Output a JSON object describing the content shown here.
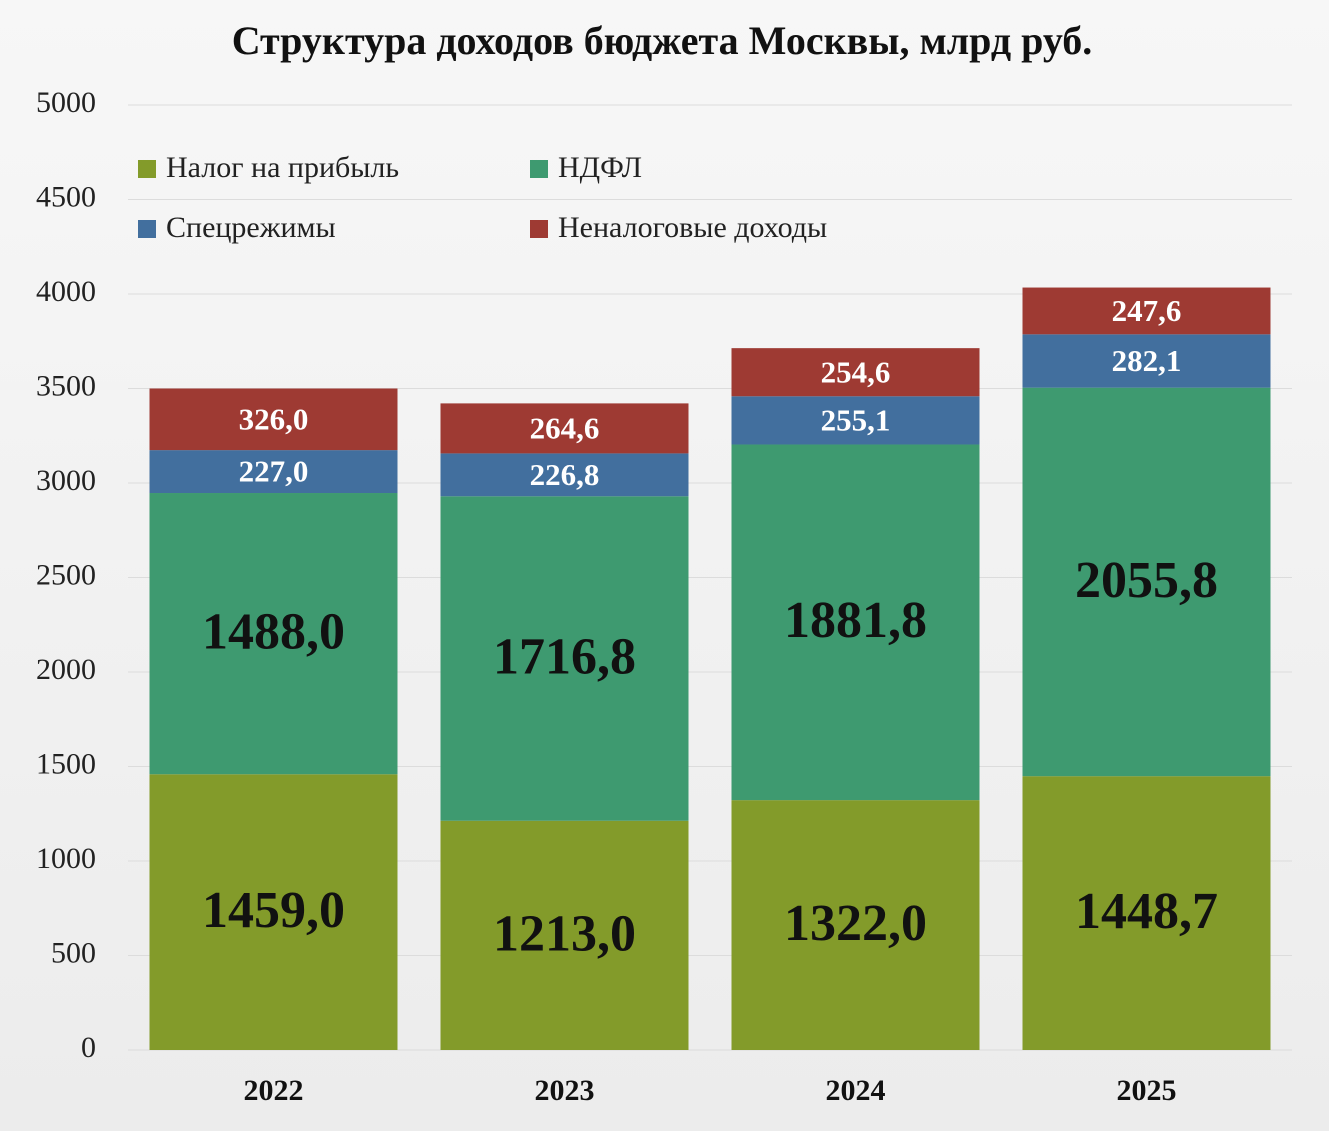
{
  "chart_data": {
    "type": "stacked_bar",
    "title": "Структура доходов бюджета Москвы, млрд руб.",
    "categories": [
      "2022",
      "2023",
      "2024",
      "2025"
    ],
    "series": [
      {
        "name": "Налог на прибыль",
        "color": "#839b2a",
        "values": [
          1459.0,
          1213.0,
          1322.0,
          1448.7
        ],
        "value_labels": [
          "1459,0",
          "1213,0",
          "1322,0",
          "1448,7"
        ]
      },
      {
        "name": "НДФЛ",
        "color": "#3e9a70",
        "values": [
          1488.0,
          1716.8,
          1881.8,
          2055.8
        ],
        "value_labels": [
          "1488,0",
          "1716,8",
          "1881,8",
          "2055,8"
        ]
      },
      {
        "name": "Спецрежимы",
        "color": "#426f9e",
        "values": [
          227.0,
          226.8,
          255.1,
          282.1
        ],
        "value_labels": [
          "227,0",
          "226,8",
          "255,1",
          "282,1"
        ]
      },
      {
        "name": "Неналоговые доходы",
        "color": "#9e3a33",
        "values": [
          326.0,
          264.6,
          254.6,
          247.6
        ],
        "value_labels": [
          "326,0",
          "264,6",
          "254,6",
          "247,6"
        ]
      }
    ],
    "ylim": [
      0,
      5000
    ],
    "yticks": [
      0,
      500,
      1000,
      1500,
      2000,
      2500,
      3000,
      3500,
      4000,
      4500,
      5000
    ],
    "grid": true,
    "legend": "top-left"
  }
}
